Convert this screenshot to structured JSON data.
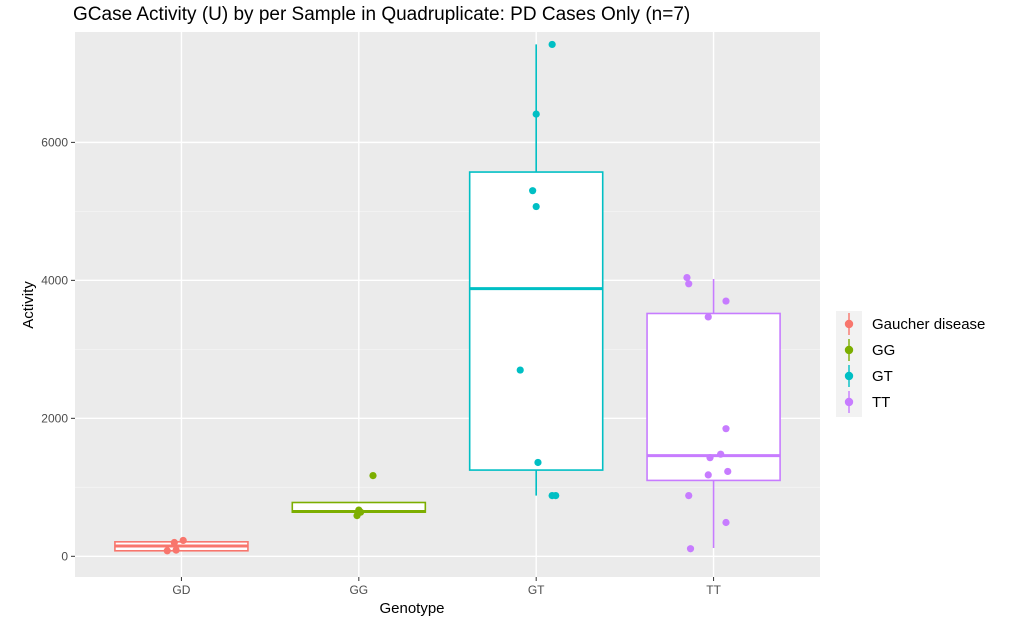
{
  "chart_data": {
    "type": "boxplot",
    "title": "GCase Activity (U) by per Sample in Quadruplicate: PD Cases Only (n=7)",
    "xlabel": "Genotype",
    "ylabel": "Activity",
    "ylim": [
      -300,
      7600
    ],
    "yticks": [
      0,
      2000,
      4000,
      6000
    ],
    "grid": true,
    "legend_position": "right",
    "categories": [
      "GD",
      "GG",
      "GT",
      "TT"
    ],
    "series": [
      {
        "name": "Gaucher disease",
        "category": "GD",
        "color": "#F8766D",
        "box": {
          "min": 80,
          "q1": 80,
          "median": 150,
          "q3": 210,
          "max": 240
        },
        "points": [
          {
            "dx": -0.08,
            "y": 80
          },
          {
            "dx": -0.03,
            "y": 90
          },
          {
            "dx": -0.04,
            "y": 200
          },
          {
            "dx": 0.01,
            "y": 230
          }
        ]
      },
      {
        "name": "GG",
        "category": "GG",
        "color": "#7CAE00",
        "box": {
          "min": 640,
          "q1": 640,
          "median": 650,
          "q3": 780,
          "max": 780
        },
        "points": [
          {
            "dx": -0.01,
            "y": 590
          },
          {
            "dx": 0.01,
            "y": 640
          },
          {
            "dx": 0.0,
            "y": 670
          },
          {
            "dx": 0.08,
            "y": 1170
          }
        ]
      },
      {
        "name": "GT",
        "category": "GT",
        "color": "#00BFC4",
        "box": {
          "min": 880,
          "q1": 1250,
          "median": 3880,
          "q3": 5570,
          "max": 7420
        },
        "points": [
          {
            "dx": 0.09,
            "y": 7420
          },
          {
            "dx": 0.0,
            "y": 6410
          },
          {
            "dx": -0.02,
            "y": 5300
          },
          {
            "dx": 0.0,
            "y": 5070
          },
          {
            "dx": -0.09,
            "y": 2700
          },
          {
            "dx": 0.01,
            "y": 1360
          },
          {
            "dx": 0.09,
            "y": 880
          },
          {
            "dx": 0.11,
            "y": 880
          }
        ]
      },
      {
        "name": "TT",
        "category": "TT",
        "color": "#C77CFF",
        "box": {
          "min": 120,
          "q1": 1100,
          "median": 1460,
          "q3": 3520,
          "max": 4020
        },
        "points": [
          {
            "dx": -0.15,
            "y": 4040
          },
          {
            "dx": -0.14,
            "y": 3950
          },
          {
            "dx": 0.07,
            "y": 3700
          },
          {
            "dx": -0.03,
            "y": 3470
          },
          {
            "dx": 0.07,
            "y": 1850
          },
          {
            "dx": 0.04,
            "y": 1480
          },
          {
            "dx": -0.02,
            "y": 1430
          },
          {
            "dx": 0.08,
            "y": 1230
          },
          {
            "dx": -0.03,
            "y": 1180
          },
          {
            "dx": -0.14,
            "y": 880
          },
          {
            "dx": 0.07,
            "y": 490
          },
          {
            "dx": -0.13,
            "y": 110
          }
        ]
      }
    ]
  }
}
